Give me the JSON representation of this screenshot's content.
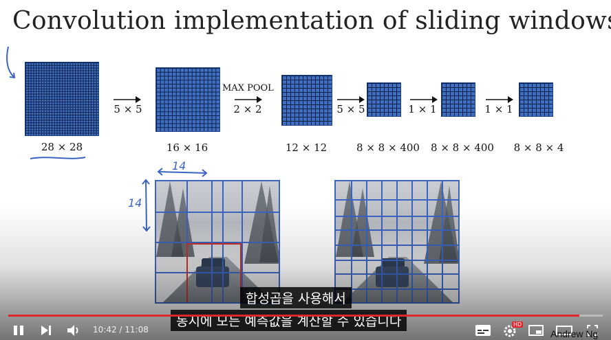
{
  "slide": {
    "title": "Convolution implementation of sliding windows",
    "stages": [
      {
        "label": "28 × 28"
      },
      {
        "label": "16 × 16"
      },
      {
        "label": "12 × 12"
      },
      {
        "label": "8 × 8 × 400"
      },
      {
        "label": "8 × 8 × 400"
      },
      {
        "label": "8 × 8 × 4"
      }
    ],
    "ops": [
      {
        "label": "5 × 5"
      },
      {
        "label": "2 × 2",
        "header": "MAX POOL"
      },
      {
        "label": "5 × 5"
      },
      {
        "label": "1 × 1"
      },
      {
        "label": "1 × 1"
      }
    ],
    "annotations": {
      "width": "14",
      "height": "14"
    },
    "author": "Andrew Ng"
  },
  "subtitles": {
    "line1": "합성곱을 사용해서",
    "line2": "동시에 모든 예측값을 계산할 수 있습니다"
  },
  "player": {
    "current_time": "10:42",
    "duration": "11:08",
    "progress": 0.961,
    "accent": "#e0262b",
    "hd_badge": "HD",
    "icons": [
      "pause-icon",
      "next-icon",
      "volume-icon",
      "subtitles-icon",
      "settings-icon",
      "miniplayer-icon",
      "theater-icon",
      "fullscreen-icon"
    ]
  }
}
